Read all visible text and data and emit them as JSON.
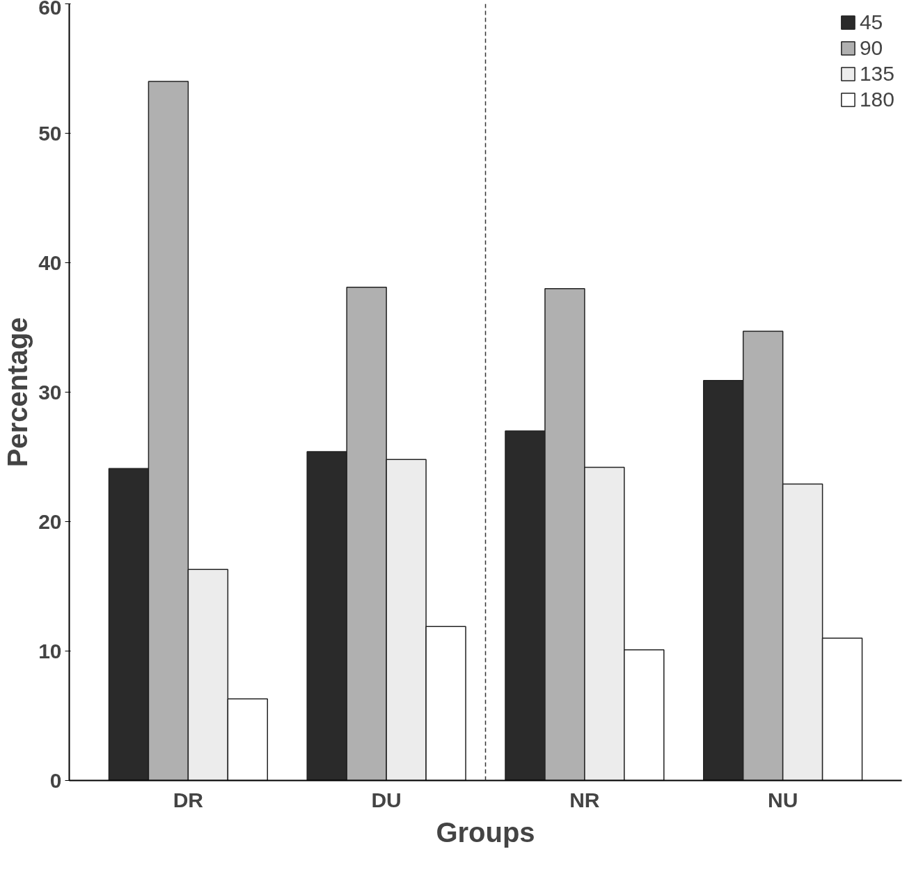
{
  "chart_data": {
    "type": "bar",
    "xlabel": "Groups",
    "ylabel": "Percentage",
    "categories": [
      "DR",
      "DU",
      "NR",
      "NU"
    ],
    "series": [
      {
        "name": "45",
        "color": "#2a2a2a",
        "values": [
          24.1,
          25.4,
          27.0,
          30.9
        ]
      },
      {
        "name": "90",
        "color": "#b0b0b0",
        "values": [
          54.0,
          38.1,
          38.0,
          34.7
        ]
      },
      {
        "name": "135",
        "color": "#ececec",
        "values": [
          16.3,
          24.8,
          24.2,
          22.9
        ]
      },
      {
        "name": "180",
        "color": "#ffffff",
        "values": [
          6.3,
          11.9,
          10.1,
          11.0
        ]
      }
    ],
    "ylim": [
      0,
      60
    ],
    "yticks": [
      0,
      10,
      20,
      30,
      40,
      50,
      60
    ],
    "grid": false,
    "legend": "top right"
  }
}
